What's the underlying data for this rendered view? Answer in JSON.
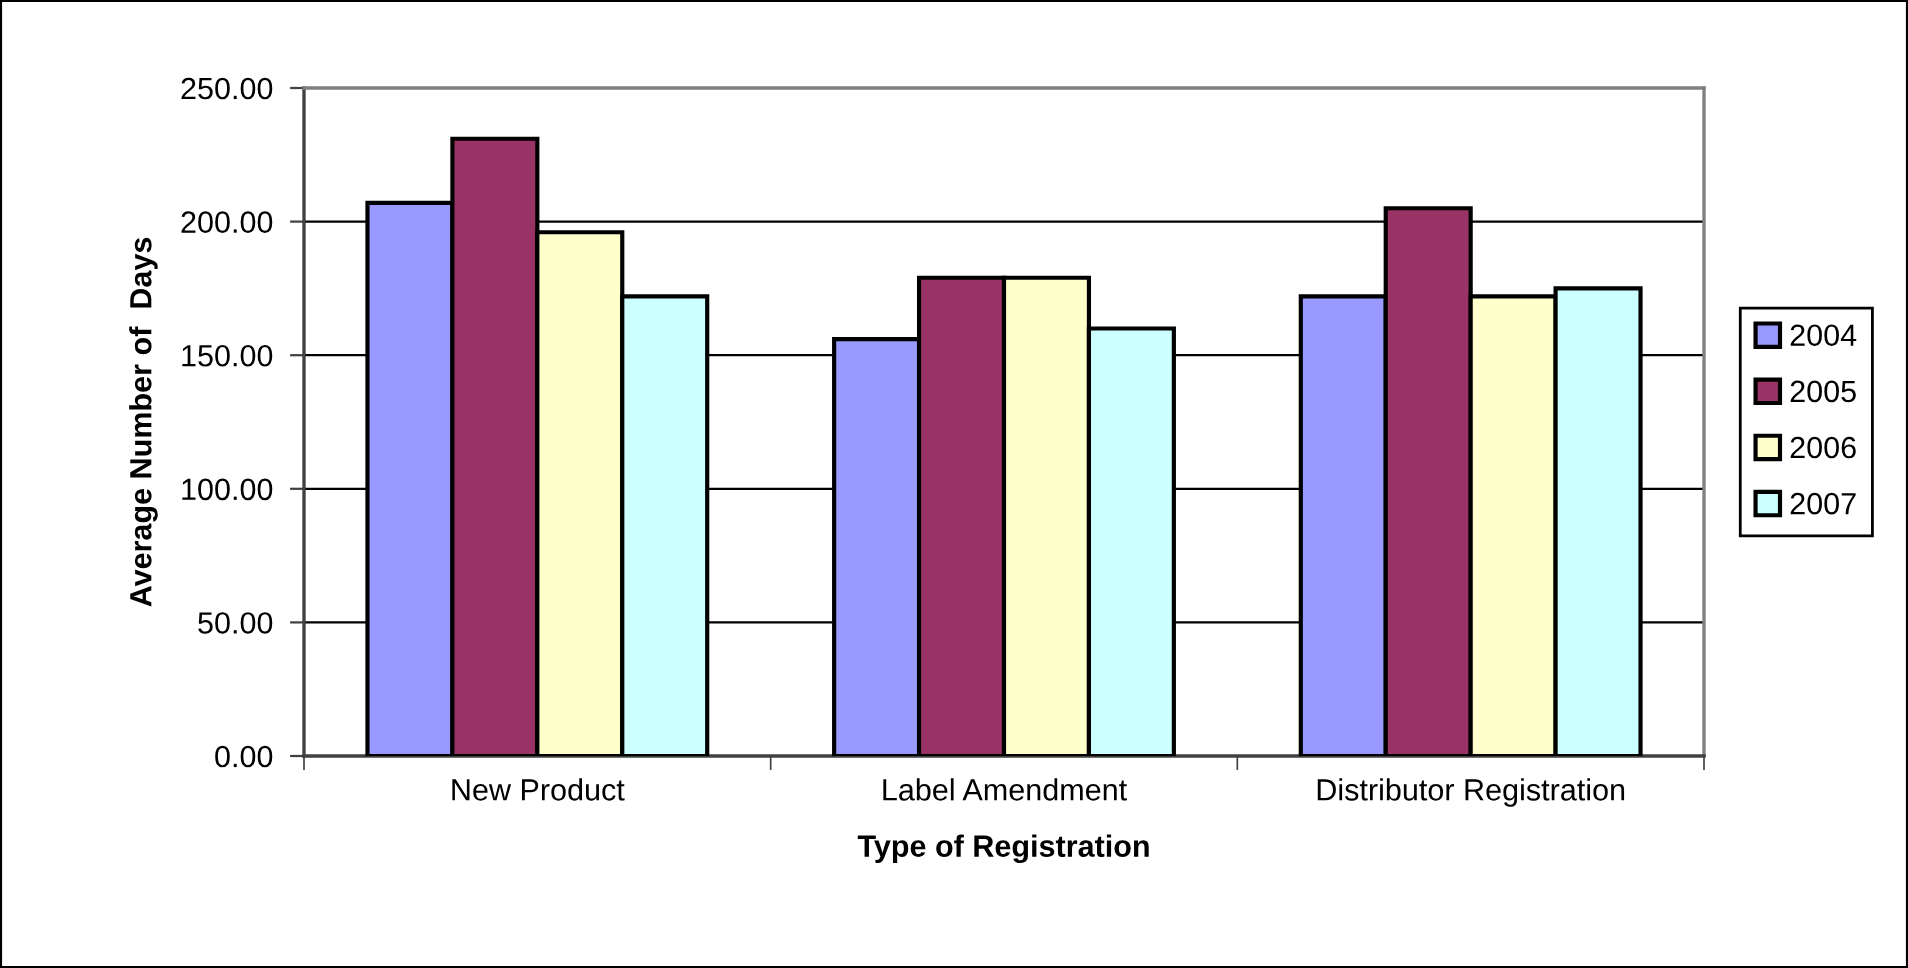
{
  "chart_data": {
    "type": "bar",
    "xlabel": "Type of Registration",
    "ylabel": "Average Number of  Days",
    "categories": [
      "New Product",
      "Label Amendment",
      "Distributor Registration"
    ],
    "series": [
      {
        "name": "2004",
        "color": "#9999ff",
        "values": [
          207,
          156,
          172
        ]
      },
      {
        "name": "2005",
        "color": "#993366",
        "values": [
          231,
          179,
          205
        ]
      },
      {
        "name": "2006",
        "color": "#ffffcc",
        "values": [
          196,
          179,
          172
        ]
      },
      {
        "name": "2007",
        "color": "#ccffff",
        "values": [
          172,
          160,
          175
        ]
      }
    ],
    "ylim": [
      0,
      250
    ],
    "yticks": [
      {
        "value": 0,
        "label": "0.00"
      },
      {
        "value": 50,
        "label": "50.00"
      },
      {
        "value": 100,
        "label": "100.00"
      },
      {
        "value": 150,
        "label": "150.00"
      },
      {
        "value": 200,
        "label": "200.00"
      },
      {
        "value": 250,
        "label": "250.00"
      }
    ],
    "grid": "y",
    "legend": "right"
  }
}
